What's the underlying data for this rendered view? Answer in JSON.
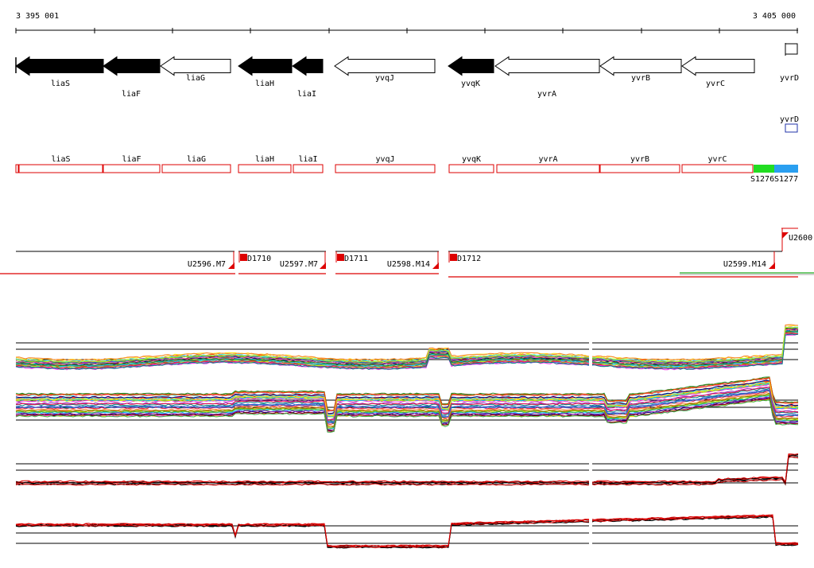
{
  "ruler": {
    "start_label": "3 395 001",
    "end_label": "3 405 000"
  },
  "genes": [
    {
      "name": "liaS",
      "strand": "-",
      "filled": true
    },
    {
      "name": "liaF",
      "strand": "-",
      "filled": true
    },
    {
      "name": "liaG",
      "strand": "-",
      "filled": false
    },
    {
      "name": "liaH",
      "strand": "-",
      "filled": true
    },
    {
      "name": "liaI",
      "strand": "-",
      "filled": true
    },
    {
      "name": "yvqJ",
      "strand": "-",
      "filled": false
    },
    {
      "name": "yvqK",
      "strand": "-",
      "filled": true
    },
    {
      "name": "yvrA",
      "strand": "-",
      "filled": false
    },
    {
      "name": "yvrB",
      "strand": "-",
      "filled": false
    },
    {
      "name": "yvrC",
      "strand": "-",
      "filled": false
    },
    {
      "name": "yvrD",
      "strand": "+",
      "filled": false
    }
  ],
  "segments": {
    "boxes": [
      "liaS",
      "liaF",
      "liaG",
      "liaH",
      "liaI",
      "yvqJ",
      "yvqK",
      "yvrA",
      "yvrB",
      "yvrC"
    ],
    "extra_label": "yvrD",
    "colored": [
      {
        "label": "S1276",
        "color": "#22dd22"
      },
      {
        "label": "S1277",
        "color": "#2a9ff0"
      }
    ]
  },
  "transcripts": {
    "units": [
      "U2596.M7",
      "U2597.M7",
      "U2598.M14",
      "U2599.M14",
      "U2600"
    ],
    "downs": [
      "D1710",
      "D1711",
      "D1712"
    ]
  },
  "colors": {
    "gene_fill": "#000000",
    "segment_stroke": "#dd0000",
    "transcript_red": "#dd0000",
    "accent_green": "#22aa22"
  }
}
